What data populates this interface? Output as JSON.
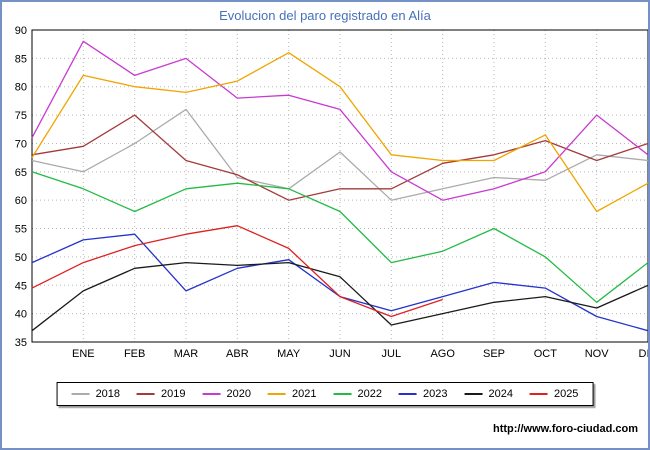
{
  "page": {
    "title": "Evolucion del paro registrado en Alía",
    "footer_url": "http://www.foro-ciudad.com",
    "title_color": "#4670bd",
    "frame_color": "#7590c5"
  },
  "chart_data": {
    "type": "line",
    "title": "Evolucion del paro registrado en Alía",
    "categories": [
      "ENE",
      "FEB",
      "MAR",
      "ABR",
      "MAY",
      "JUN",
      "JUL",
      "AGO",
      "SEP",
      "OCT",
      "NOV",
      "DIC"
    ],
    "ylim": [
      35,
      90
    ],
    "yticks": [
      35,
      40,
      45,
      50,
      55,
      60,
      65,
      70,
      75,
      80,
      85,
      90
    ],
    "grid": "dotted",
    "legend_position": "bottom",
    "series_note": "Each series has a leading point drawn at the left axis before ENE; 2025 ends at AGO",
    "series": [
      {
        "name": "2018",
        "color": "#ababab",
        "values": [
          67,
          65,
          70,
          76,
          64,
          62,
          68.5,
          60,
          62,
          64,
          63.5,
          68,
          67
        ]
      },
      {
        "name": "2019",
        "color": "#a43a3a",
        "values": [
          68,
          69.5,
          75,
          67,
          64.5,
          60,
          62,
          62,
          66.5,
          68,
          70.5,
          67,
          70
        ]
      },
      {
        "name": "2020",
        "color": "#c93ad1",
        "values": [
          71,
          88,
          82,
          85,
          78,
          78.5,
          76,
          65,
          60,
          62,
          65,
          75,
          68
        ]
      },
      {
        "name": "2021",
        "color": "#f0a500",
        "values": [
          67.5,
          82,
          80,
          79,
          81,
          86,
          80,
          68,
          67,
          67,
          71.5,
          58,
          63
        ]
      },
      {
        "name": "2022",
        "color": "#22bb44",
        "values": [
          65,
          62,
          58,
          62,
          63,
          62,
          58,
          49,
          51,
          55,
          50,
          42,
          49
        ]
      },
      {
        "name": "2023",
        "color": "#2333cc",
        "values": [
          49,
          53,
          54,
          44,
          48,
          49.5,
          43,
          40.5,
          43,
          45.5,
          44.5,
          39.5,
          37
        ]
      },
      {
        "name": "2024",
        "color": "#1a1a1a",
        "values": [
          37,
          44,
          48,
          49,
          48.5,
          49,
          46.5,
          38,
          40,
          42,
          43,
          41,
          45
        ]
      },
      {
        "name": "2025",
        "color": "#dd2222",
        "values": [
          44.5,
          49,
          52,
          54,
          55.5,
          51.5,
          43,
          39.5,
          42.5
        ]
      }
    ]
  }
}
